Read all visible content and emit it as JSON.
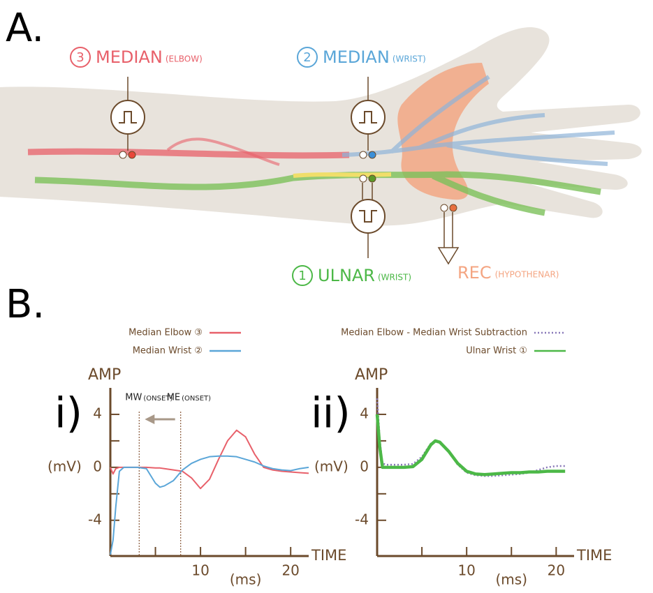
{
  "panel_a": {
    "label": "A.",
    "sites": [
      {
        "number": "3",
        "name": "MEDIAN",
        "site": "(ELBOW)",
        "color": "#e8606a"
      },
      {
        "number": "2",
        "name": "MEDIAN",
        "site": "(WRIST)",
        "color": "#5aa6d8"
      },
      {
        "number": "1",
        "name": "ULNAR",
        "site": "(WRIST)",
        "color": "#4cb847"
      }
    ],
    "recording": {
      "name": "REC",
      "site": "(HYPOTHENAR)",
      "color": "#f4a582"
    }
  },
  "panel_b": {
    "label": "B."
  },
  "chart_data": [
    {
      "type": "line",
      "panel": "i)",
      "y_label": "AMP",
      "y_unit": "(mV)",
      "x_label": "TIME",
      "x_unit": "(ms)",
      "x": [
        0,
        0.3,
        0.6,
        1,
        1.5,
        2,
        3,
        4,
        5,
        5.5,
        6,
        7,
        8,
        9,
        10,
        11,
        12,
        13,
        14,
        15,
        16,
        17,
        18,
        19,
        20,
        21,
        22
      ],
      "series": [
        {
          "name": "Median Elbow ③",
          "color": "#e8606a",
          "style": "solid",
          "values": [
            0,
            -0.5,
            -0.1,
            0,
            0,
            0,
            0,
            0,
            -0.05,
            -0.05,
            -0.1,
            -0.2,
            -0.3,
            -0.8,
            -1.6,
            -0.9,
            0.6,
            2.0,
            2.8,
            2.3,
            1.0,
            0,
            -0.2,
            -0.3,
            -0.35,
            -0.4,
            -0.45
          ]
        },
        {
          "name": "Median Wrist ②",
          "color": "#5aa6d8",
          "style": "solid",
          "values": [
            -6.6,
            -5.5,
            -3,
            -0.3,
            0,
            0,
            0,
            -0.1,
            -1.2,
            -1.5,
            -1.4,
            -1.0,
            -0.2,
            0.3,
            0.6,
            0.8,
            0.85,
            0.85,
            0.8,
            0.6,
            0.4,
            0.1,
            -0.1,
            -0.2,
            -0.25,
            -0.1,
            0
          ]
        }
      ],
      "xlim": [
        0,
        22
      ],
      "ylim": [
        -6.7,
        6
      ],
      "xticks": [
        10,
        20
      ],
      "xminor_ticks": [
        5,
        15
      ],
      "yticks": [
        -4,
        0,
        4
      ],
      "yminor_ticks": [
        -2,
        2
      ],
      "annotations": [
        {
          "text": "MW",
          "note": "(ONSET)",
          "x": 3.2
        },
        {
          "text": "ME",
          "note": "(ONSET)",
          "x": 7.8
        }
      ]
    },
    {
      "type": "line",
      "panel": "ii)",
      "y_label": "AMP",
      "y_unit": "(mV)",
      "x_label": "TIME",
      "x_unit": "(ms)",
      "x": [
        0,
        0.3,
        0.6,
        1,
        2,
        3,
        4,
        5,
        6,
        6.5,
        7,
        8,
        9,
        10,
        11,
        12,
        13,
        14,
        15,
        16,
        17,
        18,
        19,
        20,
        21
      ],
      "series": [
        {
          "name": "Median Elbow - Median Wrist Subtraction",
          "color": "#8878b8",
          "style": "dotted",
          "values": [
            5.2,
            2,
            0.3,
            0.2,
            0.2,
            0.2,
            0.25,
            0.8,
            1.8,
            2.0,
            1.9,
            1.2,
            0.2,
            -0.4,
            -0.6,
            -0.65,
            -0.65,
            -0.6,
            -0.55,
            -0.5,
            -0.4,
            -0.2,
            0,
            0.1,
            0.1
          ]
        },
        {
          "name": "Ulnar Wrist ①",
          "color": "#4cb847",
          "style": "solid",
          "values": [
            4,
            1.5,
            0,
            0,
            0,
            0,
            0.05,
            0.6,
            1.7,
            2.0,
            1.9,
            1.2,
            0.3,
            -0.3,
            -0.5,
            -0.55,
            -0.5,
            -0.45,
            -0.4,
            -0.4,
            -0.35,
            -0.35,
            -0.3,
            -0.3,
            -0.3
          ]
        }
      ],
      "xlim": [
        0,
        22
      ],
      "ylim": [
        -6.7,
        6
      ],
      "xticks": [
        10,
        20
      ],
      "xminor_ticks": [
        5,
        15
      ],
      "yticks": [
        -4,
        0,
        4
      ],
      "yminor_ticks": [
        -2,
        2
      ]
    }
  ]
}
